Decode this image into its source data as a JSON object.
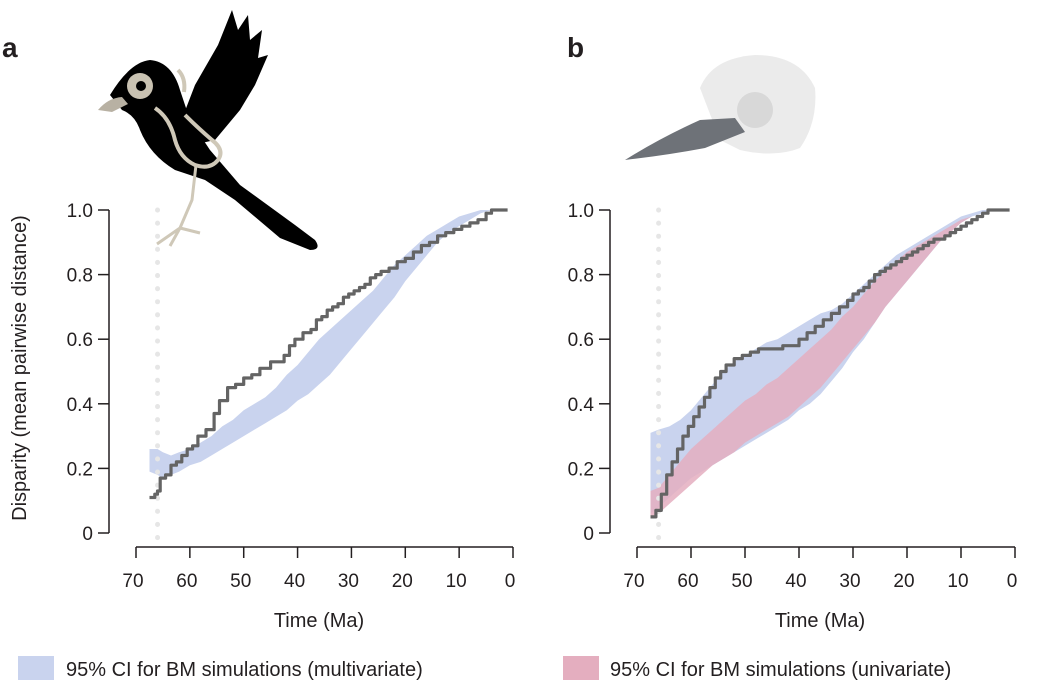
{
  "panels": [
    {
      "letter": "a",
      "illustration": "bird-skeleton-silhouette"
    },
    {
      "letter": "b",
      "illustration": "bird-skull"
    }
  ],
  "legend": {
    "multivariate": {
      "label": "95% CI for BM simulations (multivariate)",
      "color": "#c9d3ee"
    },
    "univariate": {
      "label": "95% CI for BM simulations (univariate)",
      "color": "#e4aebf"
    }
  },
  "colors": {
    "observed_line": "#646464",
    "kpg_marker": "#e6e6e6",
    "axis": "#231f20"
  },
  "chart_data": [
    {
      "panel": "a",
      "type": "line",
      "xlabel": "Time (Ma)",
      "ylabel": "Disparity (mean pairwise distance)",
      "xlim": [
        70,
        0
      ],
      "ylim": [
        0,
        1
      ],
      "x_reversed": true,
      "x_ticks": [
        "70",
        "60",
        "50",
        "40",
        "30",
        "20",
        "10",
        "0"
      ],
      "y_ticks": [
        "0",
        "0.2",
        "0.4",
        "0.6",
        "0.8",
        "1.0"
      ],
      "grid": false,
      "kpg_boundary_ma": 66,
      "series": [
        {
          "x": [
            67.5,
            66.5,
            66,
            65.5,
            64.5,
            63.5,
            62.5,
            61.5,
            60.5,
            59.5,
            58.5,
            57,
            55.5,
            54.5,
            53,
            51.5,
            50,
            48.5,
            47,
            45,
            43.5,
            42.5,
            41.5,
            40.5,
            39,
            37.5,
            36.5,
            35.5,
            34.5,
            33.5,
            32.5,
            31.5,
            30.5,
            29.5,
            28.5,
            27.5,
            26.5,
            25.5,
            24.5,
            23,
            21.5,
            20,
            18.5,
            17,
            15.5,
            14,
            12.5,
            11,
            9.5,
            8,
            6.5,
            5,
            4,
            3,
            2,
            1
          ],
          "y": [
            0.11,
            0.12,
            0.13,
            0.17,
            0.18,
            0.21,
            0.22,
            0.24,
            0.26,
            0.27,
            0.3,
            0.32,
            0.37,
            0.41,
            0.45,
            0.46,
            0.48,
            0.49,
            0.51,
            0.53,
            0.53,
            0.55,
            0.58,
            0.6,
            0.62,
            0.63,
            0.66,
            0.67,
            0.69,
            0.7,
            0.71,
            0.73,
            0.74,
            0.75,
            0.76,
            0.77,
            0.79,
            0.8,
            0.81,
            0.82,
            0.84,
            0.85,
            0.87,
            0.89,
            0.9,
            0.92,
            0.93,
            0.94,
            0.95,
            0.96,
            0.97,
            0.99,
            1.0,
            1.0,
            1.0,
            1.0
          ]
        }
      ],
      "bands": [
        {
          "legend_key": "multivariate",
          "x": [
            67.5,
            66,
            65,
            63.5,
            62,
            60,
            58,
            56,
            54,
            52,
            50,
            48,
            46,
            44,
            42,
            40,
            38,
            36,
            34,
            32,
            30,
            28,
            26,
            24,
            22,
            20,
            18,
            16,
            14,
            12,
            10,
            8,
            6,
            4,
            2,
            1
          ],
          "upper": [
            0.26,
            0.26,
            0.25,
            0.24,
            0.25,
            0.26,
            0.28,
            0.3,
            0.33,
            0.35,
            0.38,
            0.4,
            0.42,
            0.45,
            0.49,
            0.52,
            0.56,
            0.6,
            0.63,
            0.66,
            0.69,
            0.72,
            0.75,
            0.79,
            0.83,
            0.86,
            0.89,
            0.92,
            0.94,
            0.96,
            0.98,
            0.99,
            1.0,
            1.0,
            1.0,
            1.0
          ],
          "lower": [
            0.19,
            0.18,
            0.17,
            0.18,
            0.19,
            0.21,
            0.22,
            0.24,
            0.26,
            0.28,
            0.3,
            0.32,
            0.34,
            0.36,
            0.38,
            0.41,
            0.43,
            0.46,
            0.49,
            0.53,
            0.57,
            0.61,
            0.65,
            0.69,
            0.73,
            0.78,
            0.82,
            0.86,
            0.9,
            0.93,
            0.95,
            0.97,
            0.99,
            1.0,
            1.0,
            1.0
          ]
        }
      ]
    },
    {
      "panel": "b",
      "type": "line",
      "xlabel": "Time (Ma)",
      "ylabel": "",
      "xlim": [
        70,
        0
      ],
      "ylim": [
        0,
        1
      ],
      "x_reversed": true,
      "x_ticks": [
        "70",
        "60",
        "50",
        "40",
        "30",
        "20",
        "10",
        "0"
      ],
      "y_ticks": [
        "0",
        "0.2",
        "0.4",
        "0.6",
        "0.8",
        "1.0"
      ],
      "grid": false,
      "kpg_boundary_ma": 66,
      "series": [
        {
          "x": [
            67.5,
            66.5,
            65.5,
            64.5,
            63.5,
            62.5,
            61.5,
            60.5,
            59.5,
            58.5,
            57.5,
            56.5,
            55.5,
            54.5,
            53.5,
            52,
            50.5,
            49,
            47.5,
            46,
            44.5,
            43,
            41.5,
            40,
            38.5,
            37,
            35.5,
            34,
            32.5,
            31,
            30,
            29,
            28,
            27,
            26,
            25,
            24,
            23,
            22,
            21,
            20,
            19,
            18,
            17,
            16,
            15,
            14,
            13,
            12,
            11,
            10,
            9,
            8,
            7,
            6,
            5,
            4,
            3,
            2,
            1
          ],
          "y": [
            0.05,
            0.07,
            0.12,
            0.18,
            0.22,
            0.26,
            0.3,
            0.33,
            0.36,
            0.39,
            0.42,
            0.45,
            0.48,
            0.5,
            0.52,
            0.54,
            0.55,
            0.56,
            0.57,
            0.57,
            0.57,
            0.58,
            0.58,
            0.6,
            0.62,
            0.64,
            0.66,
            0.68,
            0.7,
            0.72,
            0.74,
            0.75,
            0.76,
            0.78,
            0.8,
            0.81,
            0.82,
            0.83,
            0.84,
            0.85,
            0.86,
            0.87,
            0.88,
            0.89,
            0.9,
            0.91,
            0.91,
            0.92,
            0.93,
            0.94,
            0.95,
            0.96,
            0.97,
            0.98,
            0.99,
            1.0,
            1.0,
            1.0,
            1.0,
            1.0
          ]
        }
      ],
      "bands": [
        {
          "legend_key": "multivariate",
          "x": [
            67.5,
            66,
            64,
            62,
            60,
            58,
            56,
            54,
            52,
            50,
            48,
            46,
            44,
            42,
            40,
            38,
            36,
            34,
            32,
            30,
            28,
            26,
            24,
            22,
            20,
            18,
            16,
            14,
            12,
            10,
            8,
            6,
            4,
            2,
            1
          ],
          "upper": [
            0.31,
            0.32,
            0.33,
            0.35,
            0.38,
            0.42,
            0.46,
            0.5,
            0.53,
            0.55,
            0.57,
            0.59,
            0.6,
            0.62,
            0.64,
            0.66,
            0.68,
            0.69,
            0.71,
            0.74,
            0.77,
            0.8,
            0.83,
            0.86,
            0.88,
            0.9,
            0.92,
            0.94,
            0.96,
            0.98,
            0.99,
            1.0,
            1.0,
            1.0,
            1.0
          ],
          "lower": [
            0.06,
            0.08,
            0.11,
            0.14,
            0.17,
            0.19,
            0.21,
            0.23,
            0.25,
            0.27,
            0.29,
            0.31,
            0.33,
            0.35,
            0.38,
            0.4,
            0.43,
            0.47,
            0.51,
            0.56,
            0.6,
            0.65,
            0.7,
            0.74,
            0.78,
            0.82,
            0.86,
            0.9,
            0.93,
            0.96,
            0.98,
            0.99,
            1.0,
            1.0,
            1.0
          ]
        },
        {
          "legend_key": "univariate",
          "x": [
            67.5,
            66,
            64,
            62,
            60,
            58,
            56,
            54,
            52,
            50,
            48,
            46,
            44,
            42,
            40,
            38,
            36,
            34,
            32,
            30,
            28,
            26,
            24,
            22,
            20,
            18,
            16,
            14,
            12,
            10,
            8,
            6,
            4,
            2,
            1
          ],
          "upper": [
            0.13,
            0.14,
            0.18,
            0.22,
            0.26,
            0.29,
            0.32,
            0.35,
            0.38,
            0.41,
            0.43,
            0.46,
            0.48,
            0.51,
            0.54,
            0.57,
            0.6,
            0.63,
            0.67,
            0.7,
            0.74,
            0.78,
            0.81,
            0.84,
            0.87,
            0.89,
            0.91,
            0.93,
            0.95,
            0.97,
            0.98,
            0.99,
            1.0,
            1.0,
            1.0
          ],
          "lower": [
            0.05,
            0.06,
            0.09,
            0.12,
            0.15,
            0.18,
            0.21,
            0.23,
            0.25,
            0.28,
            0.3,
            0.32,
            0.34,
            0.36,
            0.39,
            0.42,
            0.45,
            0.49,
            0.53,
            0.57,
            0.61,
            0.65,
            0.7,
            0.74,
            0.78,
            0.82,
            0.86,
            0.9,
            0.93,
            0.96,
            0.98,
            0.99,
            1.0,
            1.0,
            1.0
          ]
        }
      ]
    }
  ]
}
